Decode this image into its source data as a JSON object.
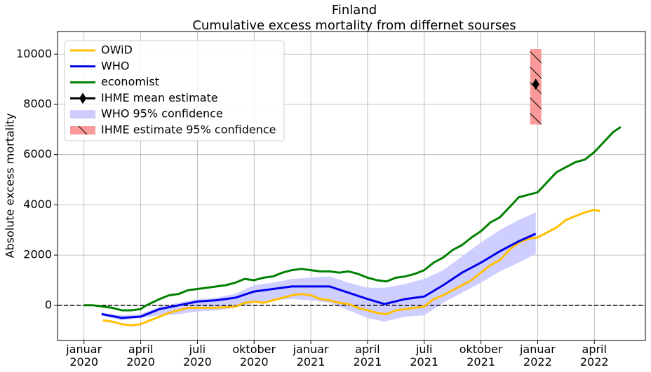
{
  "chart_data": {
    "type": "line",
    "title": "Finland",
    "subtitle": "Cumulative excess mortality from differnet sourses",
    "ylabel": "Absolute excess mortality",
    "grid": true,
    "legend": "upper left",
    "xlim": [
      -1.4,
      29.7
    ],
    "ylim": [
      -1400,
      10900
    ],
    "yticks": [
      0,
      2000,
      4000,
      6000,
      8000,
      10000
    ],
    "xticks": [
      {
        "value": 0,
        "label": "januar 2020"
      },
      {
        "value": 3,
        "label": "april 2020"
      },
      {
        "value": 6,
        "label": "juli 2020"
      },
      {
        "value": 9,
        "label": "oktober 2020"
      },
      {
        "value": 12,
        "label": "januar 2021"
      },
      {
        "value": 15,
        "label": "april 2021"
      },
      {
        "value": 18,
        "label": "juli 2021"
      },
      {
        "value": 21,
        "label": "oktober 2021"
      },
      {
        "value": 24,
        "label": "januar 2022"
      },
      {
        "value": 27,
        "label": "april 2022"
      }
    ],
    "reference_line": {
      "y": 0,
      "color": "#000000"
    },
    "series": [
      {
        "name": "OWiD",
        "color": "#ffbf00",
        "x": [
          1,
          1.5,
          2,
          2.5,
          3,
          3.5,
          4,
          4.5,
          5,
          5.5,
          6,
          7,
          8,
          8.5,
          9,
          9.5,
          10,
          10.5,
          11,
          11.5,
          12,
          12.5,
          13,
          13.5,
          14,
          14.5,
          15,
          15.5,
          16,
          16.5,
          17,
          17.5,
          18,
          18.5,
          19,
          19.5,
          20,
          20.5,
          21,
          21.5,
          22,
          22.5,
          23,
          23.5,
          24,
          24.5,
          25,
          25.5,
          26,
          26.5,
          27,
          27.3
        ],
        "values": [
          -600,
          -650,
          -750,
          -800,
          -750,
          -600,
          -450,
          -300,
          -200,
          -100,
          -100,
          -100,
          -50,
          100,
          150,
          100,
          200,
          300,
          400,
          450,
          400,
          250,
          200,
          100,
          50,
          -100,
          -200,
          -300,
          -350,
          -200,
          -150,
          -100,
          -50,
          250,
          400,
          600,
          800,
          1000,
          1300,
          1600,
          1800,
          2200,
          2500,
          2650,
          2700,
          2900,
          3100,
          3400,
          3550,
          3700,
          3800,
          3750
        ]
      },
      {
        "name": "WHO",
        "color": "#0000ee",
        "x": [
          0.93,
          2,
          3,
          4,
          5,
          6,
          7,
          8,
          9,
          10,
          11,
          12,
          13,
          14,
          15,
          15.9,
          17,
          18,
          19,
          20,
          21,
          22,
          23,
          23.9
        ],
        "values": [
          -350,
          -500,
          -450,
          -150,
          0,
          150,
          200,
          300,
          550,
          650,
          750,
          750,
          750,
          500,
          250,
          50,
          250,
          350,
          800,
          1300,
          1700,
          2150,
          2550,
          2850
        ]
      },
      {
        "name": "economist",
        "color": "#008000",
        "x": [
          0,
          0.5,
          1,
          1.5,
          2,
          2.5,
          3,
          3.3,
          4,
          4.5,
          5,
          5.5,
          6,
          6.5,
          7,
          7.5,
          8,
          8.5,
          9,
          9.5,
          10,
          10.5,
          11,
          11.5,
          12,
          12.5,
          13,
          13.5,
          14,
          14.5,
          15,
          15.5,
          16,
          16.5,
          17,
          17.5,
          18,
          18.5,
          19,
          19.5,
          20,
          20.5,
          21,
          21.5,
          22,
          22.5,
          23,
          23.5,
          24,
          24.5,
          25,
          25.5,
          26,
          26.5,
          27,
          27.5,
          28,
          28.4
        ],
        "values": [
          0,
          0,
          -50,
          -100,
          -200,
          -200,
          -150,
          0,
          250,
          400,
          450,
          600,
          650,
          700,
          750,
          800,
          900,
          1050,
          1000,
          1100,
          1150,
          1300,
          1400,
          1450,
          1400,
          1350,
          1350,
          1300,
          1350,
          1250,
          1100,
          1000,
          950,
          1100,
          1150,
          1250,
          1400,
          1700,
          1900,
          2200,
          2400,
          2700,
          2950,
          3300,
          3500,
          3900,
          4300,
          4400,
          4500,
          4900,
          5300,
          5500,
          5700,
          5800,
          6100,
          6500,
          6900,
          7100
        ]
      }
    ],
    "points": [
      {
        "name": "IHME mean estimate",
        "color": "#000000",
        "x": [
          23.9
        ],
        "values": [
          8800
        ]
      }
    ],
    "bands": [
      {
        "name": "WHO 95% confidence",
        "color": "#ccccff",
        "x": [
          0.93,
          2,
          3,
          4,
          5,
          6,
          7,
          8,
          9,
          10,
          11,
          12,
          13,
          14,
          15,
          15.9,
          17,
          18,
          19,
          20,
          21,
          22,
          23,
          23.9
        ],
        "lower": [
          -400,
          -600,
          -500,
          -400,
          -350,
          -250,
          -200,
          -100,
          100,
          200,
          250,
          200,
          100,
          -200,
          -500,
          -650,
          -450,
          -400,
          100,
          500,
          900,
          1350,
          1700,
          2050
        ],
        "upper": [
          -300,
          -400,
          -350,
          -50,
          100,
          250,
          300,
          450,
          800,
          900,
          1050,
          1100,
          1150,
          900,
          700,
          700,
          850,
          1050,
          1400,
          1950,
          2500,
          3000,
          3400,
          3700
        ]
      }
    ],
    "intervals": [
      {
        "name": "IHME estimate 95% confidence",
        "color": "#f99999",
        "x": [
          23.9
        ],
        "lower": [
          7200
        ],
        "upper": [
          10200
        ]
      }
    ]
  }
}
